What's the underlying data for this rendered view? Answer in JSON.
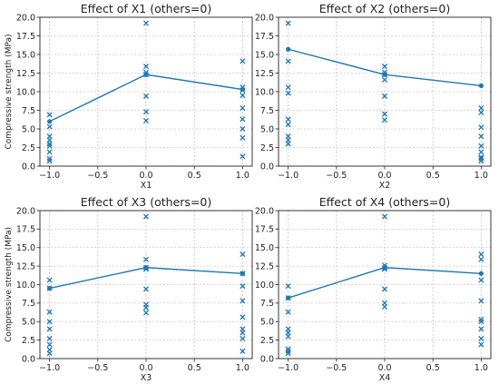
{
  "figure": {
    "accent_color": "#1f77b4",
    "ylabel": "Compressive strength (MPa)"
  },
  "chart_data": [
    {
      "type": "scatter",
      "title": "Effect of X1 (others=0)",
      "xlabel": "X1",
      "ylabel": "Compressive strength (MPa)",
      "xlim": [
        -1.1,
        1.1
      ],
      "ylim": [
        0,
        20
      ],
      "xticks": [
        -1.0,
        -0.5,
        0.0,
        0.5,
        1.0
      ],
      "yticks": [
        0,
        2.5,
        5,
        7.5,
        10,
        12.5,
        15,
        17.5,
        20
      ],
      "grid": true,
      "scatter_points": [
        {
          "x": -1,
          "y": 6.9
        },
        {
          "x": -1,
          "y": 5.3
        },
        {
          "x": -1,
          "y": 4.0
        },
        {
          "x": -1,
          "y": 3.5
        },
        {
          "x": -1,
          "y": 3.0
        },
        {
          "x": -1,
          "y": 2.7
        },
        {
          "x": -1,
          "y": 1.9
        },
        {
          "x": -1,
          "y": 1.0
        },
        {
          "x": -1,
          "y": 0.7
        },
        {
          "x": 0,
          "y": 19.2
        },
        {
          "x": 0,
          "y": 13.4
        },
        {
          "x": 0,
          "y": 12.6
        },
        {
          "x": 0,
          "y": 12.3
        },
        {
          "x": 0,
          "y": 9.4
        },
        {
          "x": 0,
          "y": 7.3
        },
        {
          "x": 0,
          "y": 6.1
        },
        {
          "x": 1,
          "y": 14.1
        },
        {
          "x": 1,
          "y": 10.6
        },
        {
          "x": 1,
          "y": 10.2
        },
        {
          "x": 1,
          "y": 9.5
        },
        {
          "x": 1,
          "y": 7.8
        },
        {
          "x": 1,
          "y": 6.3
        },
        {
          "x": 1,
          "y": 5.0
        },
        {
          "x": 1,
          "y": 3.8
        },
        {
          "x": 1,
          "y": 1.3
        }
      ],
      "mean_line": [
        {
          "x": -1,
          "y": 6.0
        },
        {
          "x": 0,
          "y": 12.3
        },
        {
          "x": 1,
          "y": 10.3
        }
      ]
    },
    {
      "type": "scatter",
      "title": "Effect of X2 (others=0)",
      "xlabel": "X2",
      "ylabel": "",
      "xlim": [
        -1.1,
        1.1
      ],
      "ylim": [
        0,
        20
      ],
      "xticks": [
        -1.0,
        -0.5,
        0.0,
        0.5,
        1.0
      ],
      "yticks": [
        0,
        2.5,
        5,
        7.5,
        10,
        12.5,
        15,
        17.5,
        20
      ],
      "grid": true,
      "scatter_points": [
        {
          "x": -1,
          "y": 19.2
        },
        {
          "x": -1,
          "y": 14.1
        },
        {
          "x": -1,
          "y": 10.6
        },
        {
          "x": -1,
          "y": 9.8
        },
        {
          "x": -1,
          "y": 6.3
        },
        {
          "x": -1,
          "y": 5.6
        },
        {
          "x": -1,
          "y": 4.0
        },
        {
          "x": -1,
          "y": 3.5
        },
        {
          "x": -1,
          "y": 3.0
        },
        {
          "x": 0,
          "y": 13.4
        },
        {
          "x": 0,
          "y": 12.6
        },
        {
          "x": 0,
          "y": 12.3
        },
        {
          "x": 0,
          "y": 11.6
        },
        {
          "x": 0,
          "y": 9.4
        },
        {
          "x": 0,
          "y": 7.0
        },
        {
          "x": 0,
          "y": 6.2
        },
        {
          "x": 1,
          "y": 7.8
        },
        {
          "x": 1,
          "y": 7.2
        },
        {
          "x": 1,
          "y": 5.2
        },
        {
          "x": 1,
          "y": 4.0
        },
        {
          "x": 1,
          "y": 2.7
        },
        {
          "x": 1,
          "y": 1.9
        },
        {
          "x": 1,
          "y": 1.2
        },
        {
          "x": 1,
          "y": 1.0
        },
        {
          "x": 1,
          "y": 0.7
        }
      ],
      "mean_line": [
        {
          "x": -1,
          "y": 15.7
        },
        {
          "x": 0,
          "y": 12.3
        },
        {
          "x": 1,
          "y": 10.8
        }
      ]
    },
    {
      "type": "scatter",
      "title": "Effect of X3 (others=0)",
      "xlabel": "X3",
      "ylabel": "Compressive strength (MPa)",
      "xlim": [
        -1.1,
        1.1
      ],
      "ylim": [
        0,
        20
      ],
      "xticks": [
        -1.0,
        -0.5,
        0.0,
        0.5,
        1.0
      ],
      "yticks": [
        0,
        2.5,
        5,
        7.5,
        10,
        12.5,
        15,
        17.5,
        20
      ],
      "grid": true,
      "scatter_points": [
        {
          "x": -1,
          "y": 10.6
        },
        {
          "x": -1,
          "y": 9.5
        },
        {
          "x": -1,
          "y": 6.3
        },
        {
          "x": -1,
          "y": 5.0
        },
        {
          "x": -1,
          "y": 4.0
        },
        {
          "x": -1,
          "y": 2.7
        },
        {
          "x": -1,
          "y": 1.9
        },
        {
          "x": -1,
          "y": 1.2
        },
        {
          "x": -1,
          "y": 0.7
        },
        {
          "x": 0,
          "y": 19.2
        },
        {
          "x": 0,
          "y": 13.4
        },
        {
          "x": 0,
          "y": 12.3
        },
        {
          "x": 0,
          "y": 12.1
        },
        {
          "x": 0,
          "y": 9.4
        },
        {
          "x": 0,
          "y": 7.3
        },
        {
          "x": 0,
          "y": 6.9
        },
        {
          "x": 0,
          "y": 6.2
        },
        {
          "x": 1,
          "y": 14.1
        },
        {
          "x": 1,
          "y": 11.5
        },
        {
          "x": 1,
          "y": 9.8
        },
        {
          "x": 1,
          "y": 7.8
        },
        {
          "x": 1,
          "y": 5.6
        },
        {
          "x": 1,
          "y": 4.0
        },
        {
          "x": 1,
          "y": 3.5
        },
        {
          "x": 1,
          "y": 2.7
        },
        {
          "x": 1,
          "y": 1.0
        }
      ],
      "mean_line": [
        {
          "x": -1,
          "y": 9.5
        },
        {
          "x": 0,
          "y": 12.3
        },
        {
          "x": 1,
          "y": 11.5
        }
      ]
    },
    {
      "type": "scatter",
      "title": "Effect of X4 (others=0)",
      "xlabel": "X4",
      "ylabel": "",
      "xlim": [
        -1.1,
        1.1
      ],
      "ylim": [
        0,
        20
      ],
      "xticks": [
        -1.0,
        -0.5,
        0.0,
        0.5,
        1.0
      ],
      "yticks": [
        0,
        2.5,
        5,
        7.5,
        10,
        12.5,
        15,
        17.5,
        20
      ],
      "grid": true,
      "scatter_points": [
        {
          "x": -1,
          "y": 9.8
        },
        {
          "x": -1,
          "y": 8.2
        },
        {
          "x": -1,
          "y": 6.3
        },
        {
          "x": -1,
          "y": 4.0
        },
        {
          "x": -1,
          "y": 3.5
        },
        {
          "x": -1,
          "y": 3.0
        },
        {
          "x": -1,
          "y": 1.3
        },
        {
          "x": -1,
          "y": 1.0
        },
        {
          "x": -1,
          "y": 0.7
        },
        {
          "x": 0,
          "y": 19.2
        },
        {
          "x": 0,
          "y": 12.6
        },
        {
          "x": 0,
          "y": 12.3
        },
        {
          "x": 0,
          "y": 12.1
        },
        {
          "x": 0,
          "y": 9.4
        },
        {
          "x": 0,
          "y": 7.5
        },
        {
          "x": 0,
          "y": 7.0
        },
        {
          "x": 1,
          "y": 14.1
        },
        {
          "x": 1,
          "y": 13.4
        },
        {
          "x": 1,
          "y": 10.6
        },
        {
          "x": 1,
          "y": 7.8
        },
        {
          "x": 1,
          "y": 5.3
        },
        {
          "x": 1,
          "y": 5.0
        },
        {
          "x": 1,
          "y": 4.0
        },
        {
          "x": 1,
          "y": 2.7
        },
        {
          "x": 1,
          "y": 1.9
        }
      ],
      "mean_line": [
        {
          "x": -1,
          "y": 8.2
        },
        {
          "x": 0,
          "y": 12.3
        },
        {
          "x": 1,
          "y": 11.5
        }
      ]
    }
  ]
}
